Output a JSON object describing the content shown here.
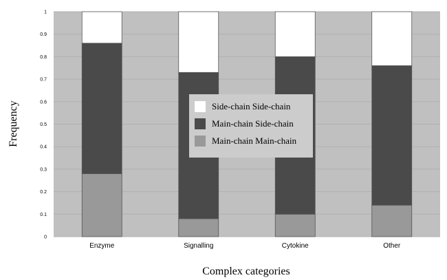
{
  "chart_data": {
    "type": "bar",
    "stacked": true,
    "xlabel": "Complex categories",
    "ylabel": "Frequency",
    "ylim": [
      0,
      1
    ],
    "yticks": [
      "0",
      "0.1",
      "0.2",
      "0.3",
      "0.4",
      "0.5",
      "0.6",
      "0.7",
      "0.8",
      "0.9",
      "1"
    ],
    "grid": true,
    "legend_placement": "center",
    "categories": [
      "Enzyme",
      "Signalling",
      "Cytokine",
      "Other"
    ],
    "series": [
      {
        "name": "Main-chain Main-chain",
        "color": "#999999",
        "values": [
          0.28,
          0.08,
          0.1,
          0.14
        ]
      },
      {
        "name": "Main-chain Side-chain",
        "color": "#4a4a4a",
        "values": [
          0.58,
          0.65,
          0.7,
          0.62
        ]
      },
      {
        "name": "Side-chain Side-chain",
        "color": "#ffffff",
        "values": [
          0.14,
          0.27,
          0.2,
          0.24
        ]
      }
    ],
    "legend_order": [
      "Side-chain Side-chain",
      "Main-chain Side-chain",
      "Main-chain Main-chain"
    ],
    "plot_background": "#c0c0c0"
  }
}
